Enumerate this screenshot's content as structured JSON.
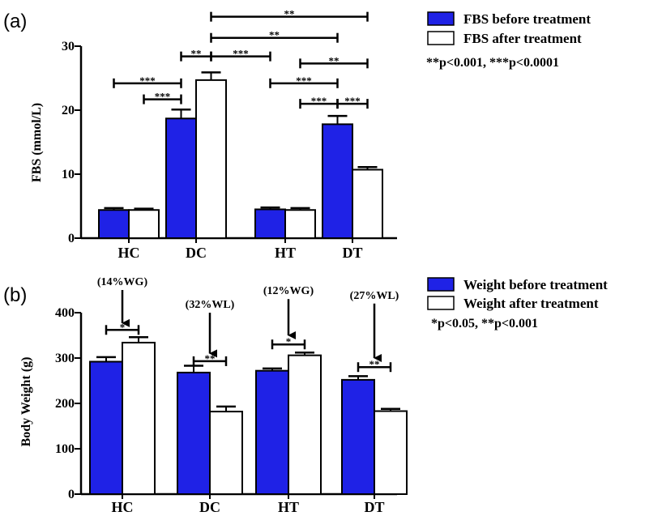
{
  "colors": {
    "before": "#1f22e6",
    "after": "#ffffff",
    "stroke": "#000000"
  },
  "chart_data": [
    {
      "panel_label": "(a)",
      "type": "bar",
      "ylabel": "FBS (mmol/L)",
      "ylim": [
        0,
        30
      ],
      "yticks": [
        0,
        10,
        20,
        30
      ],
      "categories": [
        "HC",
        "DC",
        "HT",
        "DT"
      ],
      "series": [
        {
          "name": "FBS before treatment",
          "color": "#1f22e6",
          "values": [
            4.4,
            18.7,
            4.5,
            17.8
          ],
          "errors": [
            0.3,
            1.4,
            0.3,
            1.3
          ]
        },
        {
          "name": "FBS after treatment",
          "color": "#ffffff",
          "values": [
            4.4,
            24.7,
            4.4,
            10.7
          ],
          "errors": [
            0.2,
            1.2,
            0.3,
            0.4
          ]
        }
      ],
      "significance_note": "**p<0.001, ***p<0.0001",
      "brackets": [
        {
          "from": [
            0,
            0
          ],
          "to": [
            1,
            0
          ],
          "y": 24.2,
          "label": "***"
        },
        {
          "from": [
            1,
            0
          ],
          "to": [
            1,
            1
          ],
          "y": 28.4,
          "label": "**"
        },
        {
          "from": [
            1,
            1
          ],
          "to": [
            2,
            0
          ],
          "y": 28.4,
          "label": "***"
        },
        {
          "from": [
            0,
            1
          ],
          "to": [
            1,
            0
          ],
          "y": 21.7,
          "label": "***"
        },
        {
          "from": [
            1,
            1
          ],
          "to": [
            3,
            1
          ],
          "y": 34.6,
          "label": "**"
        },
        {
          "from": [
            1,
            1
          ],
          "to": [
            3,
            0
          ],
          "y": 31.3,
          "label": "**"
        },
        {
          "from": [
            2,
            1
          ],
          "to": [
            3,
            1
          ],
          "y": 27.3,
          "label": "**"
        },
        {
          "from": [
            2,
            0
          ],
          "to": [
            3,
            0
          ],
          "y": 24.2,
          "label": "***"
        },
        {
          "from": [
            2,
            1
          ],
          "to": [
            3,
            0
          ],
          "y": 21.0,
          "label": "***"
        },
        {
          "from": [
            3,
            0
          ],
          "to": [
            3,
            1
          ],
          "y": 21.0,
          "label": "***"
        }
      ]
    },
    {
      "panel_label": "(b)",
      "type": "bar",
      "ylabel": "Body Weight (g)",
      "ylim": [
        0,
        400
      ],
      "yticks": [
        0,
        100,
        200,
        300,
        400
      ],
      "categories": [
        "HC",
        "DC",
        "HT",
        "DT"
      ],
      "series": [
        {
          "name": "Weight before treatment",
          "color": "#1f22e6",
          "values": [
            292,
            268,
            272,
            252
          ],
          "errors": [
            10,
            15,
            5,
            8
          ]
        },
        {
          "name": "Weight after treatment",
          "color": "#ffffff",
          "values": [
            334,
            182,
            306,
            183
          ],
          "errors": [
            12,
            11,
            6,
            5
          ]
        }
      ],
      "significance_note": "*p<0.05,  **p<0.001",
      "brackets": [
        {
          "from": [
            0,
            0
          ],
          "to": [
            0,
            1
          ],
          "y": 362,
          "label": "*"
        },
        {
          "from": [
            1,
            0
          ],
          "to": [
            1,
            1
          ],
          "y": 293,
          "label": "**"
        },
        {
          "from": [
            2,
            0
          ],
          "to": [
            2,
            1
          ],
          "y": 330,
          "label": "*"
        },
        {
          "from": [
            3,
            0
          ],
          "to": [
            3,
            1
          ],
          "y": 280,
          "label": "**"
        }
      ],
      "annotations": [
        {
          "category": 0,
          "text": "(14%WG)",
          "arrow_from": 450,
          "arrow_to": 377
        },
        {
          "category": 1,
          "text": "(32%WL)",
          "arrow_from": 400,
          "arrow_to": 310
        },
        {
          "category": 2,
          "text": "(12%WG)",
          "arrow_from": 430,
          "arrow_to": 350
        },
        {
          "category": 3,
          "text": "(27%WL)",
          "arrow_from": 420,
          "arrow_to": 300
        }
      ]
    }
  ]
}
